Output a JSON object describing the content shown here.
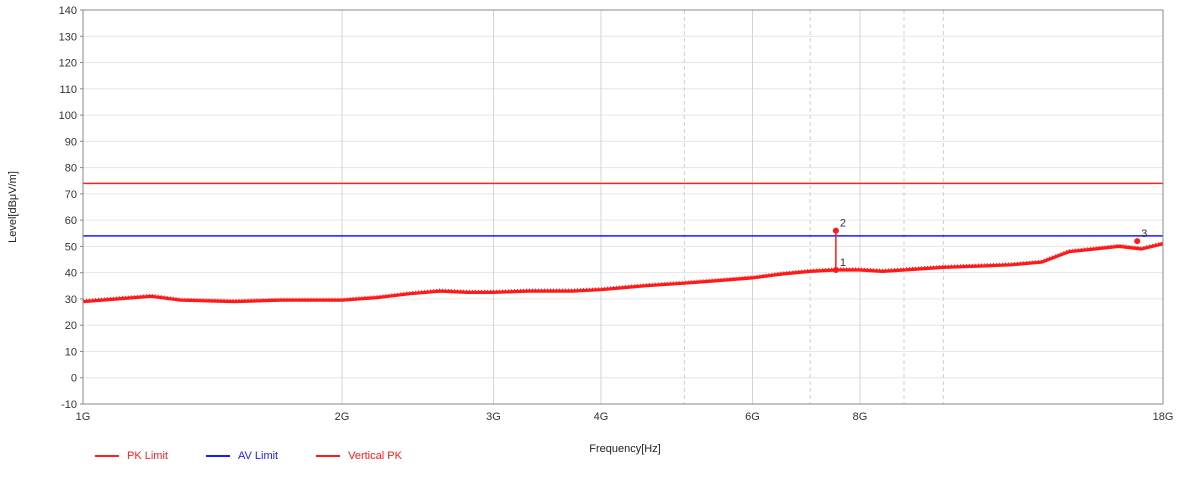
{
  "chart_data": {
    "type": "line",
    "title": "",
    "xlabel": "Frequency[Hz]",
    "ylabel": "Level[dBμV/m]",
    "x_scale": "log",
    "x_range_hz": [
      1000000000,
      18000000000
    ],
    "x_ticks": [
      {
        "hz": 1000000000,
        "label": "1G"
      },
      {
        "hz": 2000000000,
        "label": "2G"
      },
      {
        "hz": 3000000000,
        "label": "3G"
      },
      {
        "hz": 4000000000,
        "label": "4G"
      },
      {
        "hz": 6000000000,
        "label": "6G"
      },
      {
        "hz": 8000000000,
        "label": "8G"
      },
      {
        "hz": 18000000000,
        "label": "18G"
      }
    ],
    "x_minor_grid_hz": [
      5000000000,
      7000000000,
      9000000000,
      10000000000
    ],
    "ylim": [
      -10,
      140
    ],
    "y_ticks": [
      "-10",
      "0",
      "10",
      "20",
      "30",
      "40",
      "50",
      "60",
      "70",
      "80",
      "90",
      "100",
      "110",
      "120",
      "130",
      "140"
    ],
    "grid": true,
    "legend_position": "bottom-left",
    "series": [
      {
        "name": "PK Limit",
        "color": "#ff2020",
        "kind": "constant",
        "y": 74
      },
      {
        "name": "AV Limit",
        "color": "#1a1aff",
        "kind": "constant",
        "y": 54
      },
      {
        "name": "Vertical PK",
        "color": "#ff1a1a",
        "kind": "trace",
        "points": [
          [
            1000000000,
            29
          ],
          [
            1100000000,
            30
          ],
          [
            1200000000,
            31
          ],
          [
            1300000000,
            29.5
          ],
          [
            1500000000,
            29
          ],
          [
            1700000000,
            29.5
          ],
          [
            2000000000,
            29.5
          ],
          [
            2200000000,
            30.5
          ],
          [
            2400000000,
            32
          ],
          [
            2600000000,
            33
          ],
          [
            2800000000,
            32.5
          ],
          [
            3000000000,
            32.5
          ],
          [
            3300000000,
            33
          ],
          [
            3700000000,
            33
          ],
          [
            4000000000,
            33.5
          ],
          [
            4500000000,
            35
          ],
          [
            5000000000,
            36
          ],
          [
            5500000000,
            37
          ],
          [
            6000000000,
            38
          ],
          [
            6500000000,
            39.5
          ],
          [
            7000000000,
            40.5
          ],
          [
            7500000000,
            41
          ],
          [
            8000000000,
            41
          ],
          [
            8500000000,
            40.5
          ],
          [
            9000000000,
            41
          ],
          [
            10000000000,
            42
          ],
          [
            11000000000,
            42.5
          ],
          [
            12000000000,
            43
          ],
          [
            13000000000,
            44
          ],
          [
            14000000000,
            48
          ],
          [
            15000000000,
            49
          ],
          [
            16000000000,
            50
          ],
          [
            17000000000,
            49
          ],
          [
            18000000000,
            51
          ]
        ]
      }
    ],
    "markers": [
      {
        "label": "1",
        "hz": 7500000000,
        "y": 41
      },
      {
        "label": "2",
        "hz": 7500000000,
        "y": 56
      },
      {
        "label": "3",
        "hz": 16800000000,
        "y": 52
      }
    ]
  },
  "legend": {
    "pk_limit": "PK Limit",
    "av_limit": "AV Limit",
    "vertical_pk": "Vertical PK"
  },
  "colors": {
    "pk_limit": "#ff2020",
    "av_limit": "#1a1aff",
    "vertical_pk": "#ff1a1a"
  }
}
